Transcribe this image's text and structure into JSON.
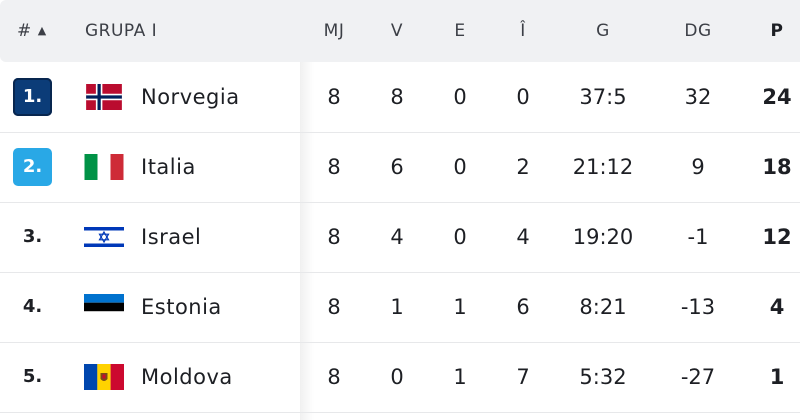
{
  "header": {
    "rank": "#",
    "sort_arrow": "▲",
    "group": "GRUPA I",
    "mj": "MJ",
    "v": "V",
    "e": "E",
    "i": "Î",
    "g": "G",
    "dg": "DG",
    "p": "P"
  },
  "rows": [
    {
      "rank": "1.",
      "rank_style": "q1",
      "flag": "norway-flag",
      "team": "Norvegia",
      "mj": "8",
      "v": "8",
      "e": "0",
      "i": "0",
      "g": "37:5",
      "dg": "32",
      "p": "24"
    },
    {
      "rank": "2.",
      "rank_style": "q2",
      "flag": "italy-flag",
      "team": "Italia",
      "mj": "8",
      "v": "6",
      "e": "0",
      "i": "2",
      "g": "21:12",
      "dg": "9",
      "p": "18"
    },
    {
      "rank": "3.",
      "rank_style": "plain",
      "flag": "israel-flag",
      "team": "Israel",
      "mj": "8",
      "v": "4",
      "e": "0",
      "i": "4",
      "g": "19:20",
      "dg": "-1",
      "p": "12"
    },
    {
      "rank": "4.",
      "rank_style": "plain",
      "flag": "estonia-flag",
      "team": "Estonia",
      "mj": "8",
      "v": "1",
      "e": "1",
      "i": "6",
      "g": "8:21",
      "dg": "-13",
      "p": "4"
    },
    {
      "rank": "5.",
      "rank_style": "plain",
      "flag": "moldova-flag",
      "team": "Moldova",
      "mj": "8",
      "v": "0",
      "e": "1",
      "i": "7",
      "g": "5:32",
      "dg": "-27",
      "p": "1"
    }
  ],
  "colors": {
    "qualified_direct": "#0b3c78",
    "qualified_playoff": "#29a8e6",
    "header_bg": "#f0f1f3"
  }
}
